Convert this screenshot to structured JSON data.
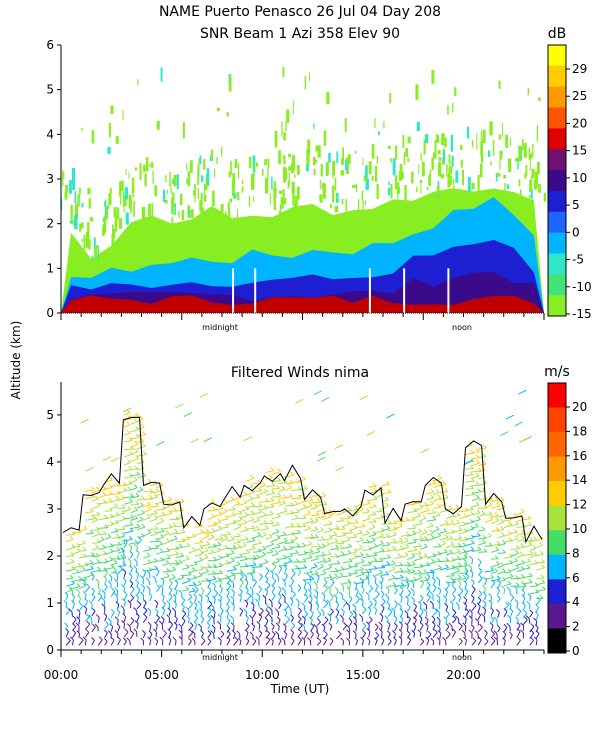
{
  "title_line1": "NAME Puerto Penasco  26 Jul 04 Day 208",
  "title_line2": "SNR Beam 1 Azi 358 Elev 90",
  "ylabel": "Altitude (km)",
  "xlabel": "Time (UT)",
  "chart_data": [
    {
      "type": "heatmap",
      "title": "NAME Puerto Penasco  26 Jul 04 Day 208 / SNR Beam 1 Azi 358 Elev 90",
      "ylabel": "Altitude (km)",
      "ylim": [
        0,
        6
      ],
      "yticks": [
        0,
        1,
        2,
        3,
        4,
        5,
        6
      ],
      "x_markers": [
        {
          "label": "midnight",
          "x": 7.5
        },
        {
          "label": "noon",
          "x": 19.5
        }
      ],
      "colorbar": {
        "unit": "dB",
        "ticks": [
          29,
          25,
          20,
          15,
          10,
          5,
          0,
          -5,
          -10,
          -15
        ],
        "colors": [
          "#ffff00",
          "#ffcc00",
          "#ff9900",
          "#ff5500",
          "#e00000",
          "#701070",
          "#3a0a8a",
          "#1e1ed2",
          "#1e64ff",
          "#00b4ff",
          "#2ee6c8",
          "#44e27a",
          "#88ee22"
        ]
      },
      "layer_tops_km": {
        "strong_echo": [
          0.3,
          0.3,
          0.3,
          0.3,
          0.3,
          0.3,
          0.3,
          0.3,
          0.3,
          0.3,
          0.3,
          0.3,
          0.3,
          0.3,
          0.3,
          0.3,
          0.3,
          0.3,
          0.3,
          0.3,
          0.3,
          0.3,
          0.3,
          0.3
        ],
        "blue": [
          0.6,
          0.55,
          0.6,
          0.6,
          0.65,
          0.7,
          0.7,
          0.7,
          0.7,
          0.7,
          0.7,
          0.75,
          0.75,
          0.8,
          0.8,
          0.8,
          0.9,
          1.2,
          1.3,
          1.5,
          1.6,
          1.7,
          1.4,
          1.0
        ],
        "cyan": [
          0.9,
          0.8,
          0.9,
          1.0,
          1.1,
          1.1,
          1.2,
          1.2,
          1.2,
          1.3,
          1.3,
          1.3,
          1.4,
          1.4,
          1.4,
          1.5,
          1.6,
          1.8,
          2.0,
          2.2,
          2.4,
          2.5,
          2.2,
          1.8
        ],
        "green": [
          1.8,
          1.2,
          1.6,
          2.1,
          2.2,
          2.0,
          2.2,
          2.3,
          2.1,
          2.2,
          2.2,
          2.3,
          2.4,
          2.3,
          2.3,
          2.4,
          2.5,
          2.6,
          2.7,
          2.8,
          2.8,
          2.9,
          2.6,
          2.4
        ]
      }
    },
    {
      "type": "scatter",
      "title": "Filtered Winds nima",
      "xlabel": "Time (UT)",
      "ylabel": "Altitude (km)",
      "ylim": [
        0,
        5.7
      ],
      "yticks": [
        0,
        1,
        2,
        3,
        4,
        5
      ],
      "xticks": [
        "00:00",
        "05:00",
        "10:00",
        "15:00",
        "20:00"
      ],
      "xlim": [
        0,
        24
      ],
      "x_markers": [
        {
          "label": "midnight",
          "x": 7.5
        },
        {
          "label": "noon",
          "x": 19.5
        }
      ],
      "colorbar": {
        "unit": "m/s",
        "ticks": [
          20,
          18,
          16,
          14,
          12,
          10,
          8,
          6,
          4,
          2,
          0
        ],
        "colors": [
          "#ff0000",
          "#ff4400",
          "#ff6600",
          "#ff9900",
          "#ffcc00",
          "#a8e23c",
          "#44dd66",
          "#00b4ff",
          "#1e1ed2",
          "#5a1890",
          "#000000"
        ]
      },
      "data_top_km": [
        2.6,
        3.4,
        3.6,
        5.0,
        3.6,
        3.2,
        2.7,
        3.1,
        3.3,
        3.6,
        3.8,
        3.7,
        3.3,
        3.0,
        3.1,
        3.5,
        2.8,
        3.2,
        3.6,
        3.1,
        4.4,
        3.2,
        2.9,
        2.4
      ]
    }
  ]
}
